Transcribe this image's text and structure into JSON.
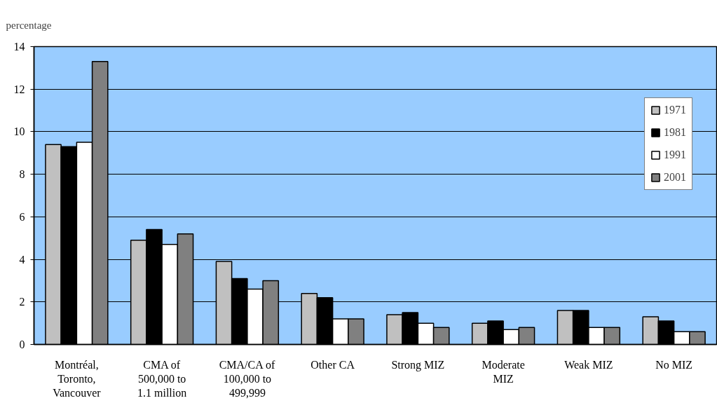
{
  "chart_data": {
    "type": "bar",
    "ylabel": "percentage",
    "categories": [
      "Montréal, Toronto, Vancouver",
      "CMA of 500,000 to 1.1 million",
      "CMA/CA of 100,000 to 499,999",
      "Other CA",
      "Strong MIZ",
      "Moderate MIZ",
      "Weak MIZ",
      "No MIZ"
    ],
    "series": [
      {
        "name": "1971",
        "color": "#c0c0c0",
        "values": [
          9.4,
          4.9,
          3.9,
          2.4,
          1.4,
          1.0,
          1.6,
          1.3
        ]
      },
      {
        "name": "1981",
        "color": "#000000",
        "values": [
          9.3,
          5.4,
          3.1,
          2.2,
          1.5,
          1.1,
          1.6,
          1.1
        ]
      },
      {
        "name": "1991",
        "color": "#ffffff",
        "values": [
          9.5,
          4.7,
          2.6,
          1.2,
          1.0,
          0.7,
          0.8,
          0.6
        ]
      },
      {
        "name": "2001",
        "color": "#808080",
        "values": [
          13.3,
          5.2,
          3.0,
          1.2,
          0.8,
          0.8,
          0.8,
          0.6
        ]
      }
    ],
    "ylim": [
      0,
      14
    ],
    "yticks": [
      0,
      2,
      4,
      6,
      8,
      10,
      12,
      14
    ],
    "grid": "y",
    "legend": "top right"
  }
}
